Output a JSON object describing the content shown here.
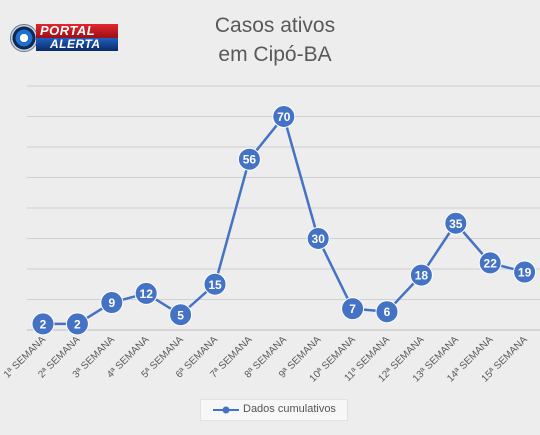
{
  "logo": {
    "line1": "PORTAL",
    "line2": "ALERTA"
  },
  "chart_data": {
    "type": "line",
    "title_lines": [
      "Casos ativos",
      "em Cipó-BA"
    ],
    "categories": [
      "1ª SEMANA",
      "2ª SEMANA",
      "3ª SEMANA",
      "4ª SEMANA",
      "5ª SEMANA",
      "6ª SEMANA",
      "7ª SEMANA",
      "8ª SEMANA",
      "9ª SEMANA",
      "10ª SEMANA",
      "11ª SEMANA",
      "12ª SEMANA",
      "13ª SEMANA",
      "14ª SEMANA",
      "15ª SEMANA"
    ],
    "series": [
      {
        "name": "Dados cumulativos",
        "values": [
          2,
          2,
          9,
          12,
          5,
          15,
          56,
          70,
          30,
          7,
          6,
          18,
          35,
          22,
          19
        ],
        "color": "#4472c4"
      }
    ],
    "ylim": [
      0,
      80
    ],
    "gridlines": true,
    "data_labels": true,
    "legend_position": "bottom"
  }
}
